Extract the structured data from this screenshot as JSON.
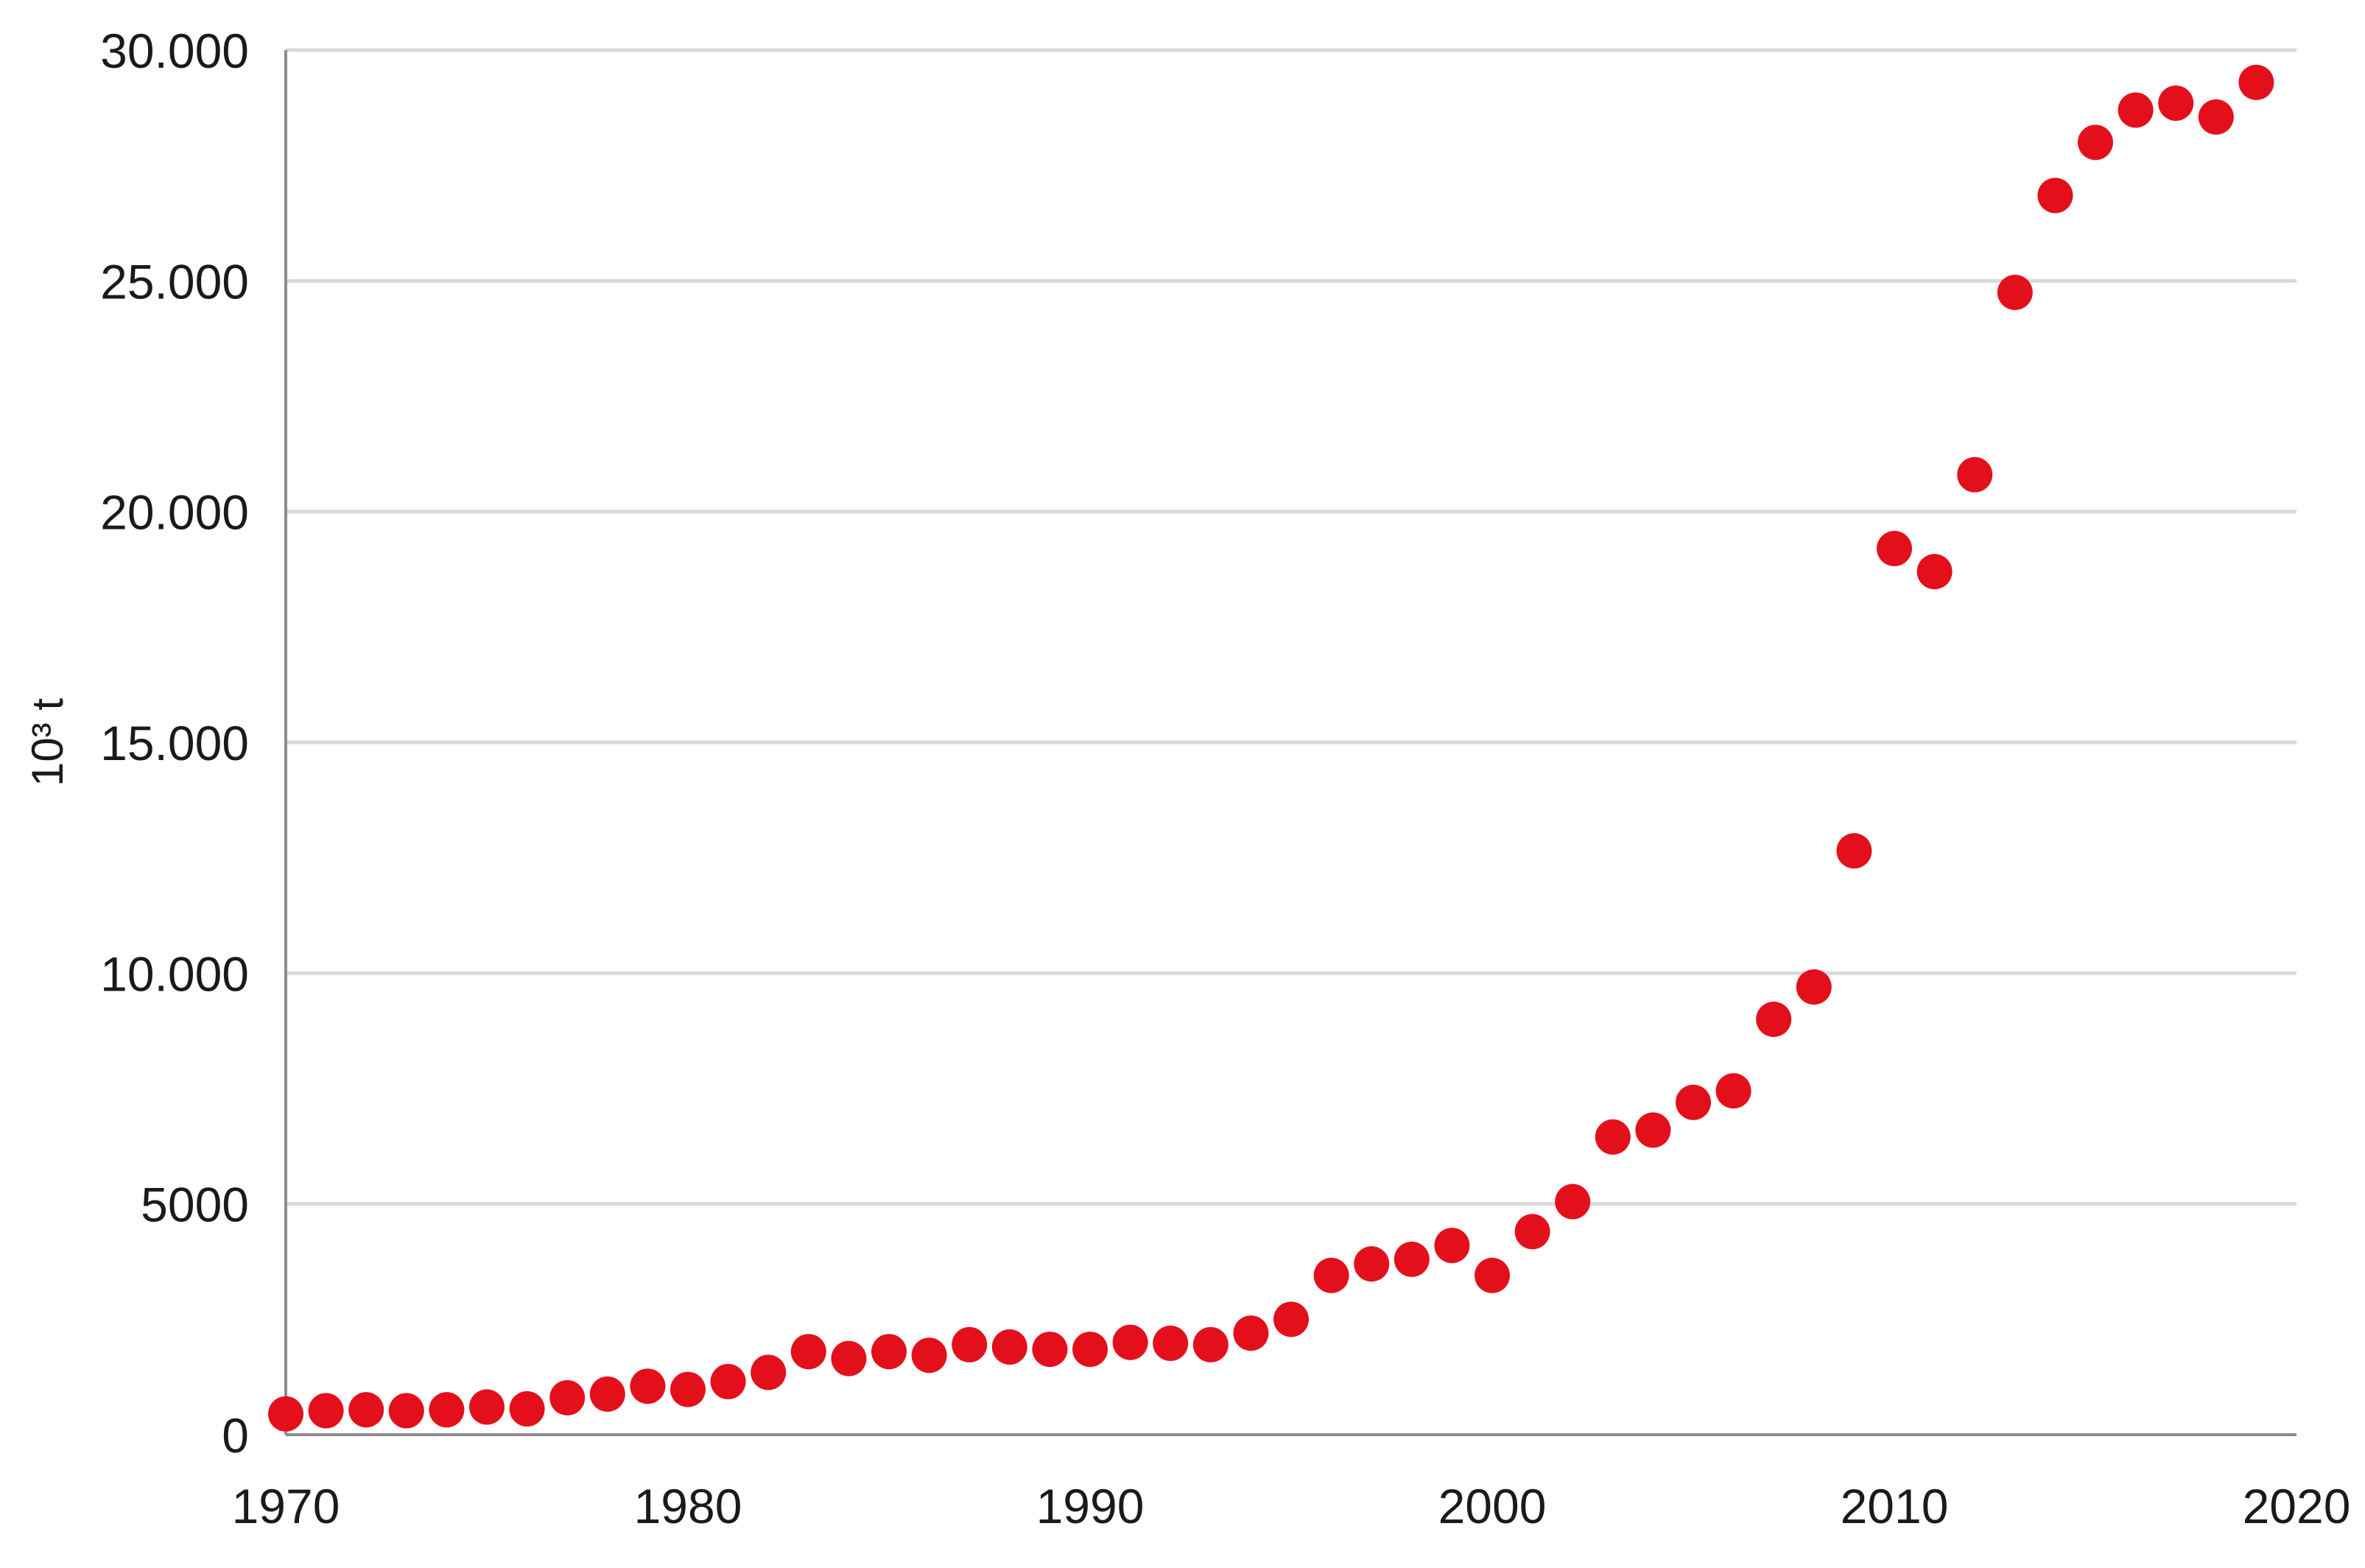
{
  "chart_data": {
    "type": "scatter",
    "title": "",
    "xlabel": "",
    "ylabel": "10³ t",
    "xlim": [
      1970,
      2020
    ],
    "ylim": [
      0,
      30000
    ],
    "grid": true,
    "x_ticks": [
      1970,
      1980,
      1990,
      2000,
      2010,
      2020
    ],
    "x_tick_labels": [
      "1970",
      "1980",
      "1990",
      "2000",
      "2010",
      "2020"
    ],
    "y_ticks": [
      0,
      5000,
      10000,
      15000,
      20000,
      25000,
      30000
    ],
    "y_tick_labels": [
      "0",
      "5000",
      "10.000",
      "15.000",
      "20.000",
      "25.000",
      "30.000"
    ],
    "marker_color": "#e3101b",
    "series": [
      {
        "x": [
          1970,
          1971,
          1972,
          1973,
          1974,
          1975,
          1976,
          1977,
          1978,
          1979,
          1980,
          1981,
          1982,
          1983,
          1984,
          1985,
          1986,
          1987,
          1988,
          1989,
          1990,
          1991,
          1992,
          1993,
          1994,
          1995,
          1996,
          1997,
          1998,
          1999,
          2000,
          2001,
          2002,
          2003,
          2004,
          2005,
          2006,
          2007,
          2008,
          2009,
          2010,
          2011,
          2012,
          2013,
          2014,
          2015,
          2016,
          2017,
          2018,
          2019
        ],
        "y": [
          450,
          520,
          540,
          520,
          540,
          600,
          560,
          800,
          880,
          1050,
          980,
          1150,
          1350,
          1800,
          1650,
          1800,
          1720,
          1950,
          1900,
          1850,
          1850,
          2000,
          1980,
          1950,
          2200,
          2500,
          3450,
          3700,
          3800,
          4100,
          3450,
          4400,
          5050,
          6450,
          6600,
          7200,
          7450,
          9000,
          9700,
          12650,
          19200,
          18700,
          20800,
          24750,
          26850,
          28000,
          28700,
          28850,
          28550,
          29300
        ]
      }
    ]
  }
}
